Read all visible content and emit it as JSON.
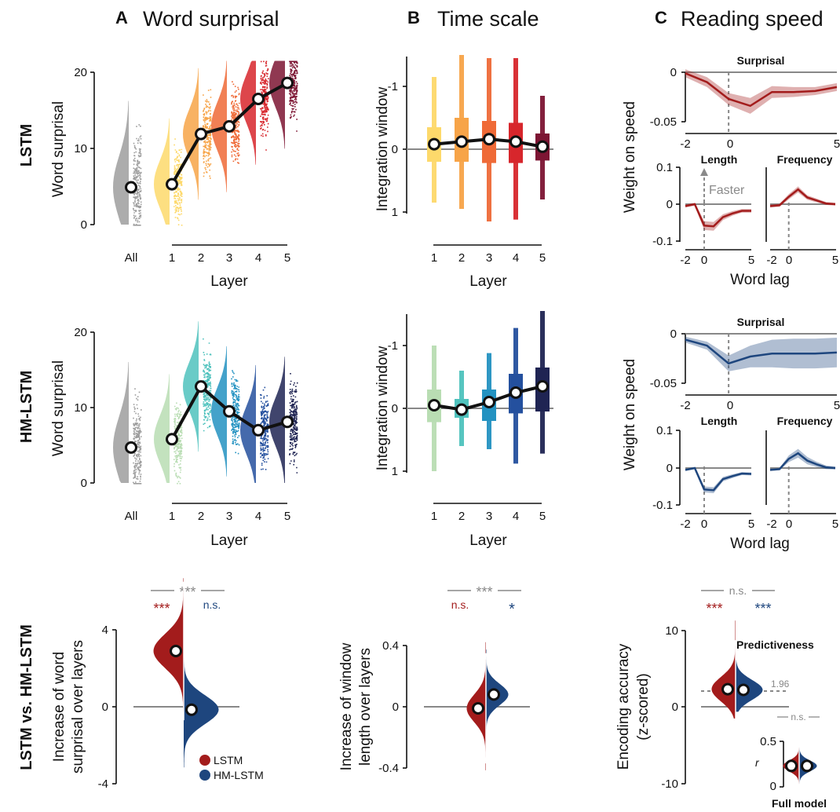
{
  "panel_letters": [
    "A",
    "B",
    "C"
  ],
  "panel_titles": [
    "Word surprisal",
    "Time scale",
    "Reading speed"
  ],
  "row_labels": [
    "LSTM",
    "HM-LSTM",
    "LSTM vs. HM-LSTM"
  ],
  "colors": {
    "lstm_layers": [
      "#fdd96b",
      "#f7a448",
      "#ef6a37",
      "#d7262c",
      "#7d1533"
    ],
    "hm_layers": [
      "#b9ddb3",
      "#4fc2bd",
      "#2392c1",
      "#24509e",
      "#1f2453"
    ],
    "all": "#9e9e9e",
    "lstm": "#a31c1c",
    "hm": "#1e467e",
    "sig_grey": "#888888"
  },
  "legend": {
    "lstm": "LSTM",
    "hm": "HM-LSTM"
  },
  "chart_data": [
    {
      "id": "A-LSTM",
      "type": "scatter",
      "ylabel": "Word surprisal",
      "xlabel": "Layer",
      "categories": [
        "All",
        "1",
        "2",
        "3",
        "4",
        "5"
      ],
      "yticks": [
        "0",
        "10",
        "20"
      ],
      "ylim": [
        0,
        20
      ],
      "values": [
        4.9,
        5.3,
        11.9,
        12.9,
        16.5,
        18.6
      ]
    },
    {
      "id": "A-HM",
      "type": "scatter",
      "ylabel": "Word surprisal",
      "xlabel": "Layer",
      "categories": [
        "All",
        "1",
        "2",
        "3",
        "4",
        "5"
      ],
      "yticks": [
        "0",
        "10",
        "20"
      ],
      "ylim": [
        0,
        20
      ],
      "values": [
        4.7,
        5.8,
        12.8,
        9.5,
        7.0,
        8.1
      ]
    },
    {
      "id": "B-LSTM",
      "type": "box",
      "ylabel": "Integration window",
      "xlabel": "Layer",
      "categories": [
        "1",
        "2",
        "3",
        "4",
        "5"
      ],
      "yticks": [
        "-1",
        "0",
        "1"
      ],
      "ylim": [
        1,
        -1.5
      ],
      "median": [
        0.08,
        0.12,
        0.16,
        0.12,
        0.04
      ],
      "q1": [
        -0.35,
        -0.5,
        -0.45,
        -0.42,
        -0.25
      ],
      "q3": [
        0.2,
        0.2,
        0.22,
        0.22,
        0.18
      ],
      "min": [
        -1.15,
        -1.5,
        -1.45,
        -1.45,
        -0.85
      ],
      "max": [
        0.85,
        0.95,
        1.15,
        1.12,
        0.8
      ]
    },
    {
      "id": "B-HM",
      "type": "box",
      "ylabel": "Integration window",
      "xlabel": "Layer",
      "categories": [
        "1",
        "2",
        "3",
        "4",
        "5"
      ],
      "yticks": [
        "-1",
        "0",
        "1"
      ],
      "ylim": [
        1,
        -1.5
      ],
      "median": [
        0.05,
        -0.02,
        0.1,
        0.25,
        0.35
      ],
      "q1": [
        -0.3,
        -0.15,
        -0.3,
        -0.55,
        -0.65
      ],
      "q3": [
        0.22,
        0.15,
        0.2,
        0.08,
        0.05
      ],
      "min": [
        -1.0,
        -0.6,
        -0.88,
        -1.28,
        -1.55
      ],
      "max": [
        1.0,
        0.6,
        0.65,
        0.88,
        0.72
      ]
    },
    {
      "id": "C-LSTM-surprisal",
      "type": "line",
      "title": "Surprisal",
      "ylabel": "Weight on speed",
      "xticks": [
        "-2",
        "0",
        "5"
      ],
      "yticks": [
        "0",
        "-0.05"
      ],
      "x": [
        -2,
        -1,
        0,
        1,
        2,
        3,
        4,
        5
      ],
      "y": [
        -0.001,
        -0.01,
        -0.027,
        -0.034,
        -0.02,
        -0.02,
        -0.019,
        -0.015
      ],
      "band": [
        0.004,
        0.005,
        0.006,
        0.008,
        0.006,
        0.005,
        0.004,
        0.004
      ]
    },
    {
      "id": "C-LSTM-length",
      "type": "line",
      "title": "Length",
      "annotation": "Faster",
      "xticks": [
        "-2",
        "0",
        "5"
      ],
      "yticks": [
        "0.1",
        "0",
        "-0.1"
      ],
      "x": [
        -2,
        -1,
        0,
        1,
        2,
        3,
        4,
        5
      ],
      "y": [
        -0.005,
        0.0,
        -0.058,
        -0.06,
        -0.035,
        -0.025,
        -0.018,
        -0.018
      ],
      "band": [
        0.004,
        0.004,
        0.012,
        0.012,
        0.008,
        0.006,
        0.005,
        0.005
      ]
    },
    {
      "id": "C-LSTM-frequency",
      "type": "line",
      "title": "Frequency",
      "xticks": [
        "-2",
        "0",
        "5"
      ],
      "x": [
        -2,
        -1,
        0,
        1,
        2,
        3,
        4,
        5
      ],
      "y": [
        -0.005,
        -0.003,
        0.02,
        0.04,
        0.018,
        0.01,
        0.002,
        0.0
      ],
      "band": [
        0.004,
        0.004,
        0.007,
        0.008,
        0.006,
        0.005,
        0.004,
        0.004
      ]
    },
    {
      "id": "C-HM-surprisal",
      "type": "line",
      "title": "Surprisal",
      "ylabel": "Weight on speed",
      "xticks": [
        "-2",
        "0",
        "5"
      ],
      "yticks": [
        "0",
        "-0.05"
      ],
      "x": [
        -2,
        -1,
        0,
        1,
        2,
        3,
        4,
        5
      ],
      "y": [
        -0.006,
        -0.012,
        -0.03,
        -0.023,
        -0.02,
        -0.02,
        -0.02,
        -0.019
      ],
      "band": [
        0.003,
        0.004,
        0.008,
        0.011,
        0.014,
        0.015,
        0.015,
        0.015
      ]
    },
    {
      "id": "C-HM-length",
      "type": "line",
      "title": "Length",
      "xticks": [
        "-2",
        "0",
        "5"
      ],
      "yticks": [
        "0.1",
        "0",
        "-0.1"
      ],
      "x": [
        -2,
        -1,
        0,
        1,
        2,
        3,
        4,
        5
      ],
      "y": [
        -0.005,
        0.0,
        -0.058,
        -0.06,
        -0.03,
        -0.022,
        -0.015,
        -0.016
      ],
      "band": [
        0.003,
        0.003,
        0.008,
        0.008,
        0.006,
        0.005,
        0.004,
        0.004
      ]
    },
    {
      "id": "C-HM-frequency",
      "type": "line",
      "title": "Frequency",
      "xticks": [
        "-2",
        "0",
        "5"
      ],
      "x": [
        -2,
        -1,
        0,
        1,
        2,
        3,
        4,
        5
      ],
      "y": [
        -0.005,
        -0.003,
        0.025,
        0.04,
        0.02,
        0.01,
        0.002,
        0.0
      ],
      "band": [
        0.003,
        0.003,
        0.009,
        0.012,
        0.01,
        0.007,
        0.005,
        0.004
      ]
    },
    {
      "id": "compare-surprisal",
      "type": "violin",
      "ylabel": "Increase of word surprisal over layers",
      "yticks": [
        "4",
        "0",
        "-4"
      ],
      "ylim": [
        -4,
        4
      ],
      "series": [
        {
          "name": "LSTM",
          "mean": 2.9,
          "sig": "***"
        },
        {
          "name": "HM-LSTM",
          "mean": -0.15,
          "sig": "n.s."
        }
      ],
      "comparison": "***"
    },
    {
      "id": "compare-window",
      "type": "violin",
      "ylabel": "Increase of window length over layers",
      "yticks": [
        "0.4",
        "0",
        "-0.4"
      ],
      "ylim": [
        -0.4,
        0.4
      ],
      "series": [
        {
          "name": "LSTM",
          "mean": -0.01,
          "sig": "n.s."
        },
        {
          "name": "HM-LSTM",
          "mean": 0.08,
          "sig": "*"
        }
      ],
      "comparison": "***"
    },
    {
      "id": "compare-encoding",
      "type": "violin",
      "ylabel": "Encoding accuracy (z-scored)",
      "title": "Predictiveness",
      "yticks": [
        "10",
        "0",
        "-10"
      ],
      "ylim": [
        -10,
        10
      ],
      "series": [
        {
          "name": "LSTM",
          "mean": 2.3,
          "sig": "***"
        },
        {
          "name": "HM-LSTM",
          "mean": 2.2,
          "sig": "***"
        }
      ],
      "comparison": "n.s.",
      "threshold": "1.96"
    },
    {
      "id": "compare-full-model",
      "type": "violin",
      "title": "Full model",
      "ylabel": "r",
      "yticks": [
        "0.5",
        "0"
      ],
      "series": [
        {
          "name": "LSTM",
          "mean": 0.23
        },
        {
          "name": "HM-LSTM",
          "mean": 0.23
        }
      ],
      "comparison": "n.s."
    }
  ]
}
